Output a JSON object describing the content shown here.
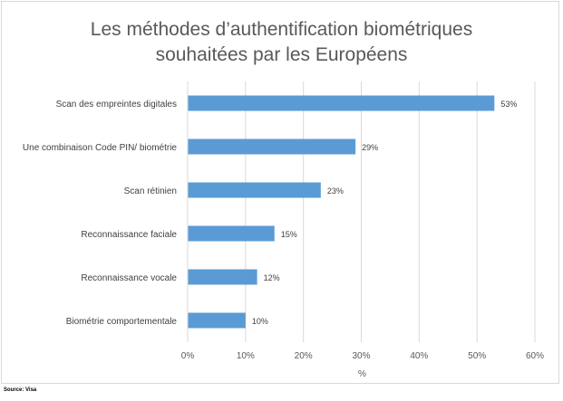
{
  "chart_data": {
    "type": "bar",
    "orientation": "horizontal",
    "title_line1": "Les méthodes d’authentification biométriques",
    "title_line2": "souhaitées par les Européens",
    "categories": [
      "Scan des empreintes digitales",
      "Une combinaison Code PIN/ biométrie",
      "Scan rétinien",
      "Reconnaissance faciale",
      "Reconnaissance vocale",
      "Biométrie comportementale"
    ],
    "values": [
      53,
      29,
      23,
      15,
      12,
      10
    ],
    "data_labels": [
      "53%",
      "29%",
      "23%",
      "15%",
      "12%",
      "10%"
    ],
    "xlabel": "%",
    "ylabel": "",
    "xlim": [
      0,
      60
    ],
    "x_ticks": [
      0,
      10,
      20,
      30,
      40,
      50,
      60
    ],
    "x_tick_labels": [
      "0%",
      "10%",
      "20%",
      "30%",
      "40%",
      "50%",
      "60%"
    ],
    "grid": "vertical",
    "legend": "none",
    "bar_color": "#5b9bd5",
    "grid_color": "#d9d9d9"
  },
  "source": "Source: Visa"
}
